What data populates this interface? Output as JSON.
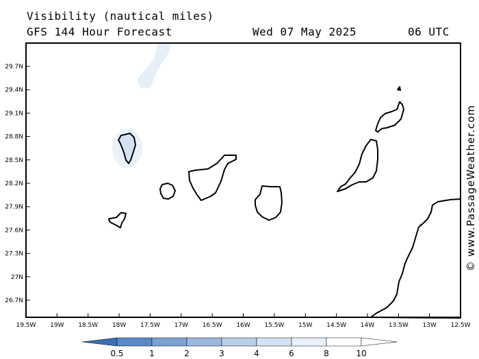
{
  "header": {
    "title": "Visibility (nautical miles)",
    "model": "GFS 144 Hour Forecast",
    "date": "Wed 07 May 2025",
    "time": "06 UTC"
  },
  "watermark": "© www.PassageWeather.com",
  "map": {
    "lat_labels": [
      "29.7N",
      "29.4N",
      "29.1N",
      "28.8N",
      "28.5N",
      "28.2N",
      "27.9N",
      "27.6N",
      "27.3N",
      "27N",
      "26.7N"
    ],
    "lon_labels": [
      "19.5W",
      "19W",
      "18.5W",
      "18W",
      "17.5W",
      "17W",
      "16.5W",
      "16W",
      "15.5W",
      "15W",
      "14.5W",
      "14W",
      "13.5W",
      "13W",
      "12.5W"
    ]
  },
  "legend": {
    "labels": [
      "0.5",
      "1",
      "2",
      "3",
      "4",
      "6",
      "8",
      "10"
    ],
    "colors": [
      "#3a6eb5",
      "#5a8ac6",
      "#7ba2d2",
      "#9ab8dd",
      "#b8cde8",
      "#d4e2f3",
      "#eaf1fa",
      "#ffffff"
    ]
  }
}
